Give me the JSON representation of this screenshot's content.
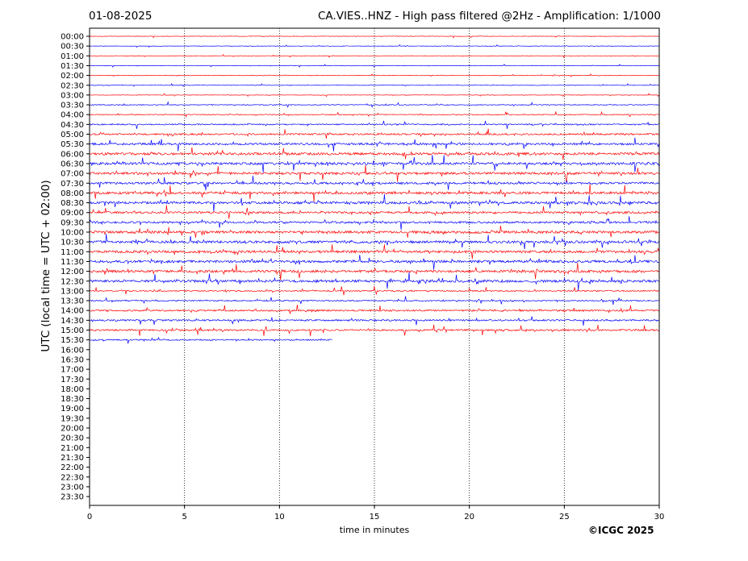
{
  "header": {
    "date": "01-08-2025",
    "station_title": "CA.VIES..HNZ - High pass filtered @2Hz - Amplification: 1/1000"
  },
  "footer": {
    "copyright": "©ICGC 2025"
  },
  "chart_data": {
    "type": "line",
    "title": "CA.VIES..HNZ - High pass filtered @2Hz - Amplification: 1/1000",
    "xlabel": "time in minutes",
    "ylabel": "UTC (local time = UTC + 02:00)",
    "xlim": [
      0,
      30
    ],
    "xticks": [
      0,
      5,
      10,
      15,
      20,
      25,
      30
    ],
    "grid": "vertical dotted lines at each x tick",
    "series_colors": [
      "#ff0000",
      "#0000ff"
    ],
    "rows": [
      "00:00",
      "00:30",
      "01:00",
      "01:30",
      "02:00",
      "02:30",
      "03:00",
      "03:30",
      "04:00",
      "04:30",
      "05:00",
      "05:30",
      "06:00",
      "06:30",
      "07:00",
      "07:30",
      "08:00",
      "08:30",
      "09:00",
      "09:30",
      "10:00",
      "10:30",
      "11:00",
      "11:30",
      "12:00",
      "12:30",
      "13:00",
      "13:30",
      "14:00",
      "14:30",
      "15:00",
      "15:30",
      "16:00",
      "16:30",
      "17:00",
      "17:30",
      "18:00",
      "18:30",
      "19:00",
      "19:30",
      "20:00",
      "20:30",
      "21:00",
      "21:30",
      "22:00",
      "22:30",
      "23:00",
      "23:30"
    ],
    "last_trace_row": "15:30",
    "last_trace_end_minute": 12.8,
    "activity": [
      1,
      1,
      1,
      1,
      1,
      1,
      1,
      2,
      2,
      3,
      4,
      5,
      6,
      6,
      6,
      5,
      6,
      6,
      5,
      5,
      6,
      6,
      6,
      6,
      6,
      6,
      3,
      3,
      4,
      4,
      4,
      3
    ]
  }
}
